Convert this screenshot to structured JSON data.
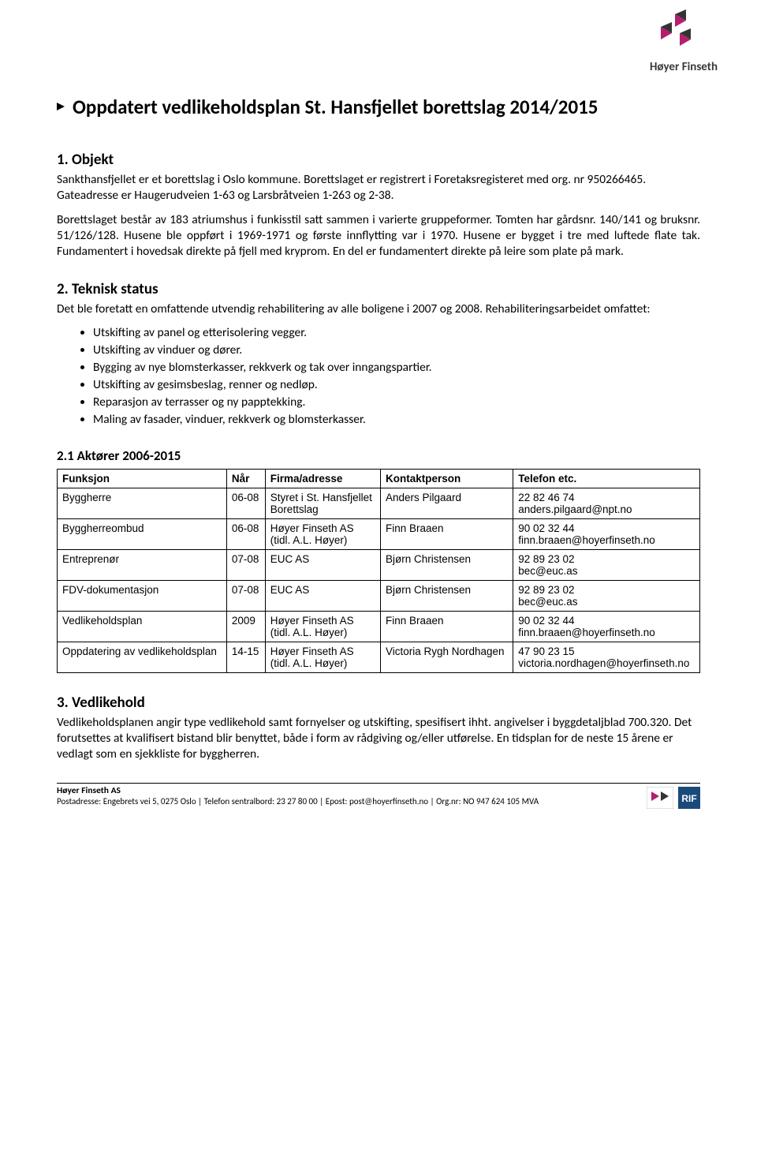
{
  "logo": {
    "brand": "Høyer Finseth",
    "color_primary": "#b31e6f",
    "color_dark": "#333333"
  },
  "title": "Oppdatert vedlikeholdsplan St. Hansfjellet borettslag 2014/2015",
  "s1": {
    "heading": "1.   Objekt",
    "p1": "Sankthansfjellet er et borettslag i Oslo kommune. Borettslaget er registrert i Foretaksregisteret med org. nr 950266465. Gateadresse er Haugerudveien 1-63 og Larsbråtveien 1-263 og 2-38.",
    "p2": "Borettslaget består av 183 atriumshus i funkisstil satt sammen i varierte gruppeformer. Tomten har gårdsnr. 140/141 og bruksnr. 51/126/128. Husene ble oppført i 1969-1971 og første innflytting var i 1970. Husene er bygget i tre med luftede flate tak. Fundamentert i hovedsak direkte på fjell med kryprom. En del er fundamentert direkte på leire som plate på mark."
  },
  "s2": {
    "heading": "2.   Teknisk status",
    "intro": "Det ble foretatt en omfattende utvendig rehabilitering av alle boligene i 2007 og 2008. Rehabiliteringsarbeidet omfattet:",
    "items": [
      "Utskifting av panel og etterisolering vegger.",
      "Utskifting av vinduer og dører.",
      "Bygging av nye blomsterkasser, rekkverk og tak over inngangspartier.",
      "Utskifting av gesimsbeslag, renner og nedløp.",
      "Reparasjon av terrasser og ny papptekking.",
      "Maling av fasader, vinduer, rekkverk og blomsterkasser."
    ]
  },
  "s21": {
    "heading": "2.1   Aktører 2006-2015",
    "columns": [
      "Funksjon",
      "Når",
      "Firma/adresse",
      "Kontaktperson",
      "Telefon etc."
    ],
    "rows": [
      {
        "funksjon": "Byggherre",
        "nar": "06-08",
        "firma1": "Styret i St. Hansfjellet",
        "firma2": "Borettslag",
        "kontakt": "Anders Pilgaard",
        "tel1": "22 82 46 74",
        "tel2": "anders.pilgaard@npt.no"
      },
      {
        "funksjon": "Byggherreombud",
        "nar": "06-08",
        "firma1": "Høyer Finseth AS",
        "firma2": "(tidl. A.L. Høyer)",
        "kontakt": "Finn Braaen",
        "tel1": "90 02 32 44",
        "tel2": "finn.braaen@hoyerfinseth.no"
      },
      {
        "funksjon": "Entreprenør",
        "nar": "07-08",
        "firma1": "EUC AS",
        "firma2": "",
        "kontakt": "Bjørn Christensen",
        "tel1": "92 89 23 02",
        "tel2": "bec@euc.as"
      },
      {
        "funksjon": "FDV-dokumentasjon",
        "nar": "07-08",
        "firma1": "EUC AS",
        "firma2": "",
        "kontakt": "Bjørn Christensen",
        "tel1": "92 89 23 02",
        "tel2": "bec@euc.as"
      },
      {
        "funksjon": "Vedlikeholdsplan",
        "nar": "2009",
        "firma1": "Høyer Finseth AS",
        "firma2": "(tidl. A.L. Høyer)",
        "kontakt": "Finn Braaen",
        "tel1": "90 02 32 44",
        "tel2": "finn.braaen@hoyerfinseth.no"
      },
      {
        "funksjon": "Oppdatering av vedlikeholdsplan",
        "nar": "14-15",
        "firma1": "Høyer Finseth AS",
        "firma2": "(tidl. A.L. Høyer)",
        "kontakt": "Victoria Rygh Nordhagen",
        "tel1": "47 90 23 15",
        "tel2": "victoria.nordhagen@hoyerfinseth.no"
      }
    ]
  },
  "s3": {
    "heading": "3.   Vedlikehold",
    "p1": "Vedlikeholdsplanen angir type vedlikehold samt fornyelser og utskifting, spesifisert ihht. angivelser i byggdetaljblad 700.320. Det forutsettes at kvalifisert bistand blir benyttet, både i form av rådgiving og/eller utførelse. En tidsplan for de neste 15 årene er vedlagt som en sjekkliste for byggherren."
  },
  "footer": {
    "company": "Høyer Finseth AS",
    "line": "Postadresse: Engebrets vei 5, 0275 Oslo | Telefon sentralbord: 23 27 80 00 | Epost: post@hoyerfinseth.no | Org.nr: NO 947 624 105 MVA"
  }
}
